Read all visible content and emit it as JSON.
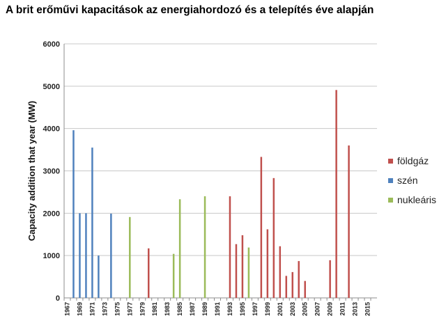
{
  "chart_data": {
    "type": "bar",
    "title": "A brit erőművi kapacitások az energiahordozó és a telepítés éve alapján",
    "xlabel": "",
    "ylabel": "Capacity addition that year (MW)",
    "ylim": [
      0,
      6000
    ],
    "yticks": [
      0,
      1000,
      2000,
      3000,
      4000,
      5000,
      6000
    ],
    "x_range": [
      1967,
      2016
    ],
    "x_tick_labels": [
      "1967",
      "1969",
      "1971",
      "1973",
      "1975",
      "1977",
      "1979",
      "1981",
      "1983",
      "1985",
      "1987",
      "1989",
      "1991",
      "1993",
      "1995",
      "1997",
      "1999",
      "2001",
      "2003",
      "2005",
      "2007",
      "2009",
      "2011",
      "2013",
      "2015"
    ],
    "grid": true,
    "legend_position": "right",
    "series": [
      {
        "name": "földgáz",
        "color": "#c0504d",
        "points": [
          {
            "year": 1980,
            "value": 1170
          },
          {
            "year": 1993,
            "value": 2400
          },
          {
            "year": 1994,
            "value": 1270
          },
          {
            "year": 1995,
            "value": 1480
          },
          {
            "year": 1998,
            "value": 3330
          },
          {
            "year": 1999,
            "value": 1620
          },
          {
            "year": 2000,
            "value": 2830
          },
          {
            "year": 2001,
            "value": 1220
          },
          {
            "year": 2002,
            "value": 520
          },
          {
            "year": 2003,
            "value": 610
          },
          {
            "year": 2004,
            "value": 870
          },
          {
            "year": 2005,
            "value": 400
          },
          {
            "year": 2009,
            "value": 890
          },
          {
            "year": 2010,
            "value": 4910
          },
          {
            "year": 2012,
            "value": 3600
          }
        ]
      },
      {
        "name": "szén",
        "color": "#4f81bd",
        "points": [
          {
            "year": 1968,
            "value": 3960
          },
          {
            "year": 1969,
            "value": 2000
          },
          {
            "year": 1970,
            "value": 2000
          },
          {
            "year": 1971,
            "value": 3550
          },
          {
            "year": 1972,
            "value": 1000
          },
          {
            "year": 1974,
            "value": 1990
          }
        ]
      },
      {
        "name": "nukleáris",
        "color": "#9bbb59",
        "points": [
          {
            "year": 1977,
            "value": 1910
          },
          {
            "year": 1984,
            "value": 1040
          },
          {
            "year": 1985,
            "value": 2330
          },
          {
            "year": 1989,
            "value": 2400
          },
          {
            "year": 1996,
            "value": 1190
          }
        ]
      }
    ]
  }
}
